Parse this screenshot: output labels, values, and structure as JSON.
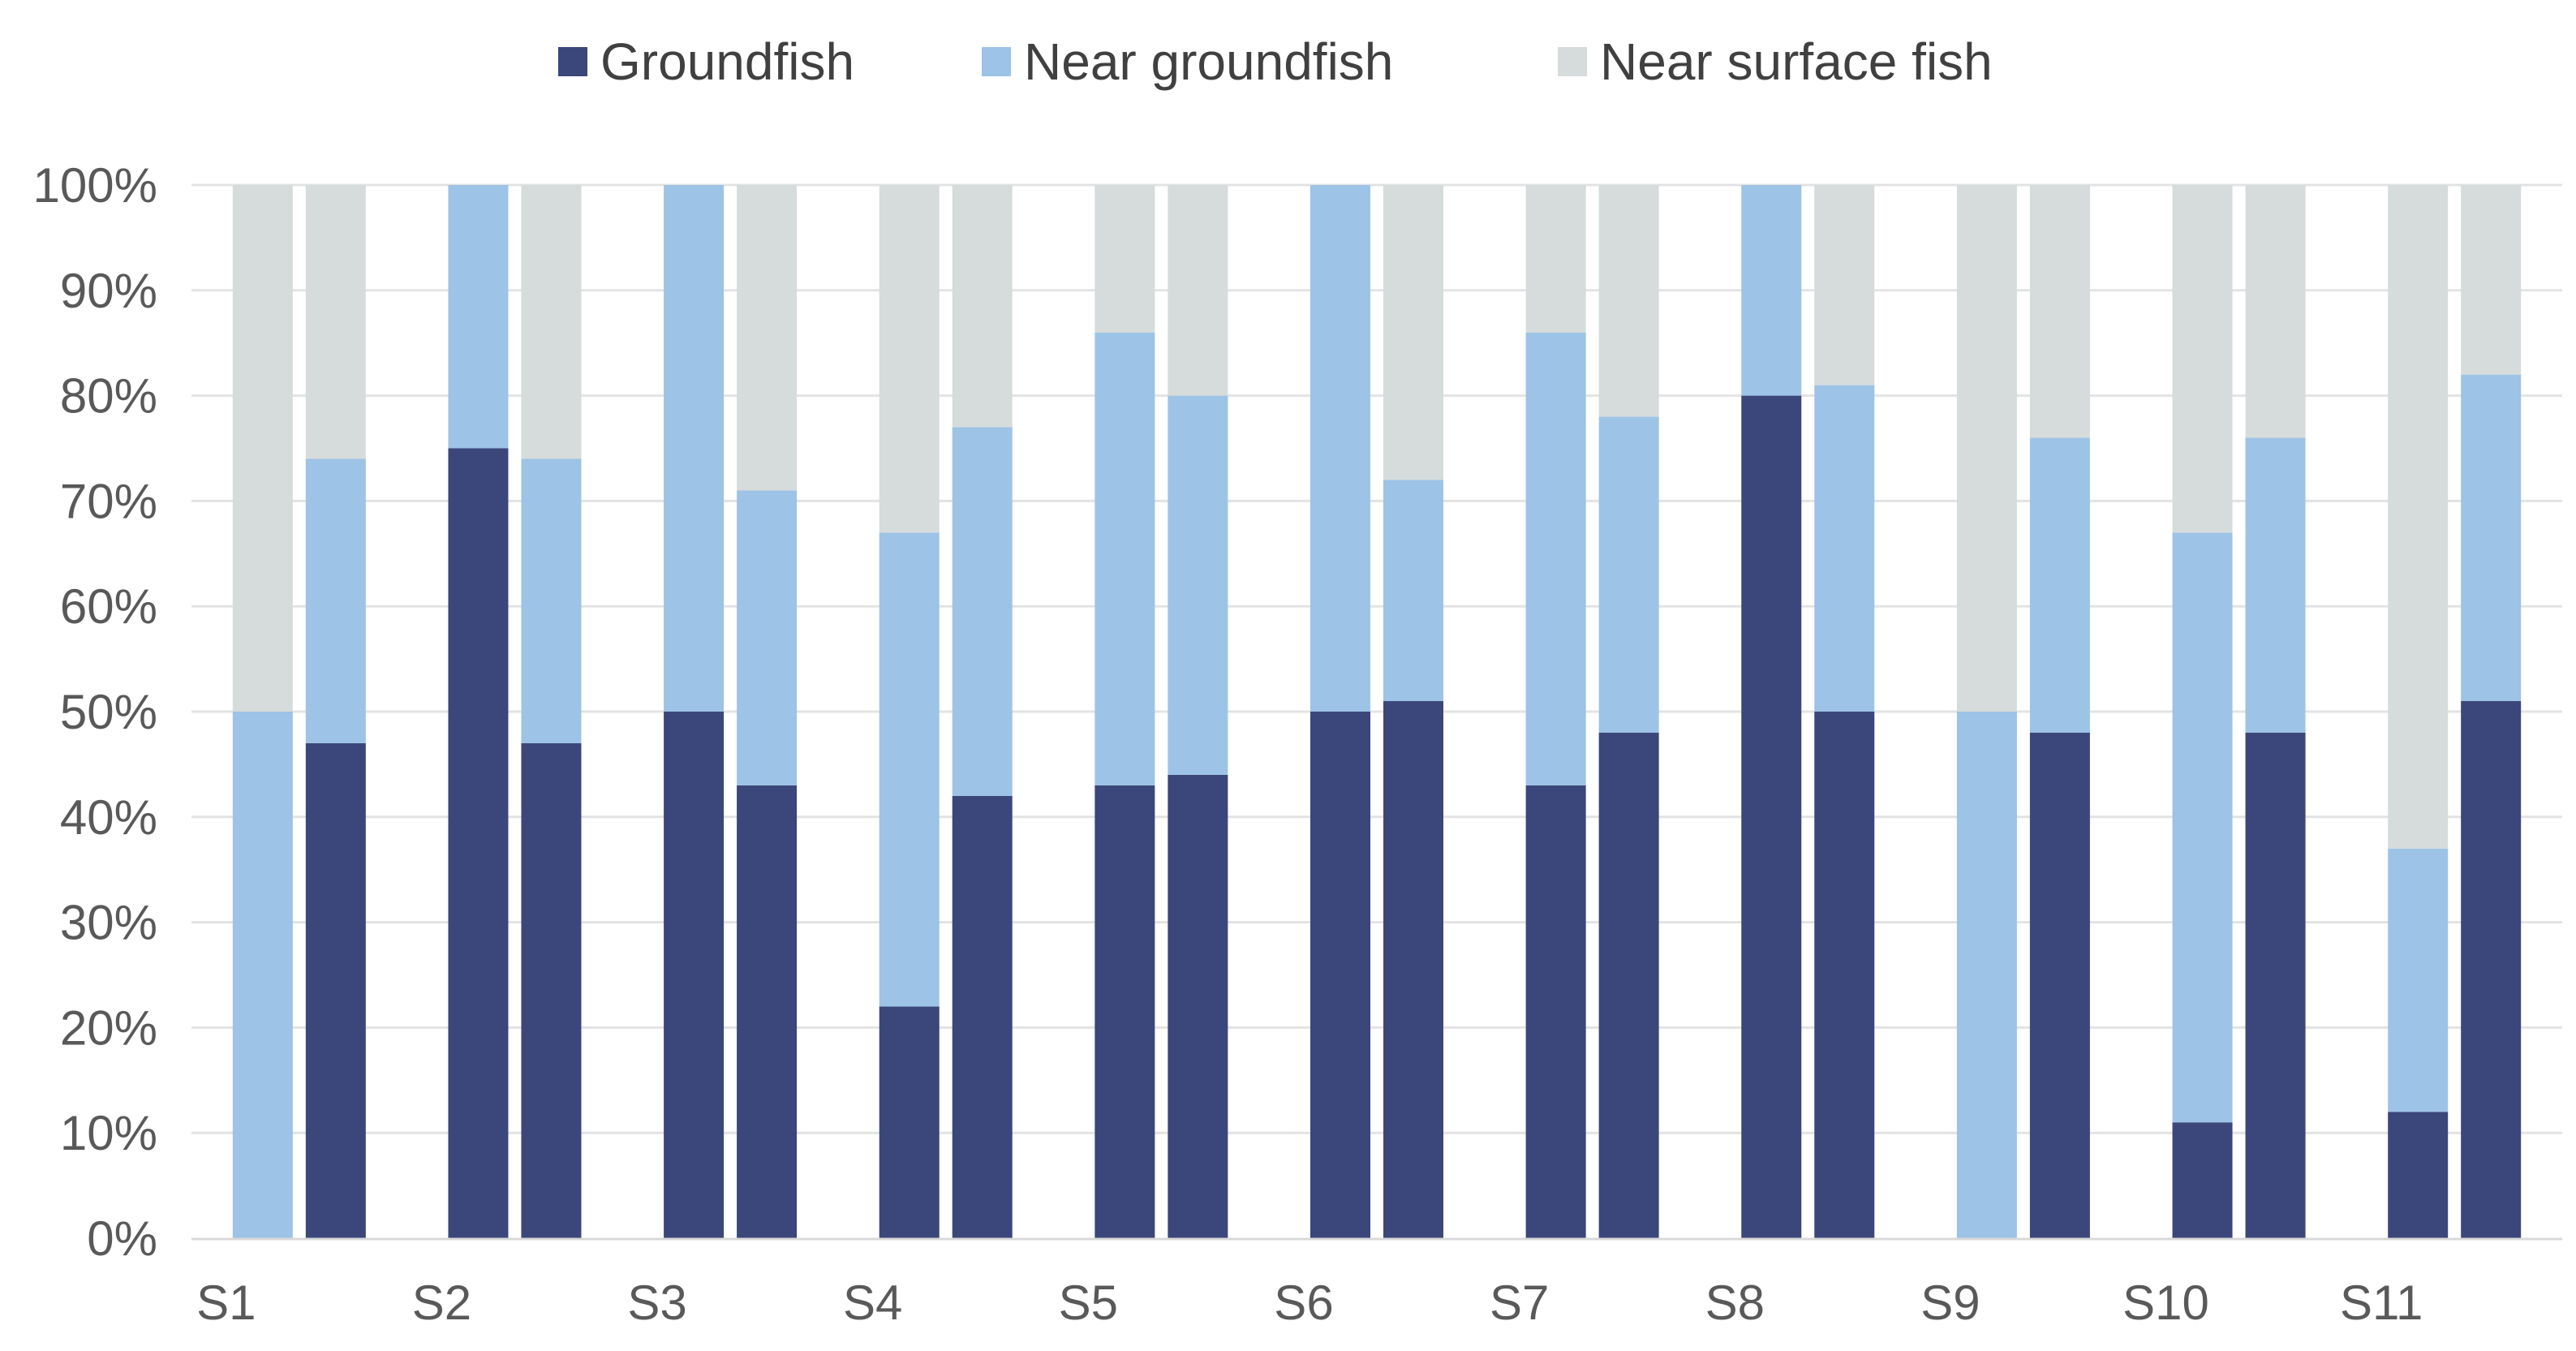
{
  "chart_data": {
    "type": "bar",
    "stacked": true,
    "percent_scale": true,
    "categories": [
      "S1",
      "S2",
      "S3",
      "S4",
      "S5",
      "S6",
      "S7",
      "S8",
      "S9",
      "S10",
      "S11"
    ],
    "bars_per_category": 2,
    "series": [
      {
        "name": "Groundfish",
        "color": "#3b477a",
        "values": [
          [
            0,
            47
          ],
          [
            75,
            47
          ],
          [
            50,
            43
          ],
          [
            22,
            42
          ],
          [
            43,
            44
          ],
          [
            50,
            51
          ],
          [
            43,
            48
          ],
          [
            80,
            50
          ],
          [
            0,
            48
          ],
          [
            11,
            48
          ],
          [
            12,
            51
          ]
        ]
      },
      {
        "name": "Near groundfish",
        "color": "#9dc3e6",
        "values": [
          [
            50,
            27
          ],
          [
            25,
            27
          ],
          [
            50,
            28
          ],
          [
            45,
            35
          ],
          [
            43,
            36
          ],
          [
            50,
            21
          ],
          [
            43,
            30
          ],
          [
            20,
            31
          ],
          [
            50,
            28
          ],
          [
            56,
            28
          ],
          [
            25,
            31
          ]
        ]
      },
      {
        "name": "Near surface fish",
        "color": "#d6dcdb",
        "values": [
          [
            50,
            26
          ],
          [
            0,
            26
          ],
          [
            0,
            29
          ],
          [
            33,
            23
          ],
          [
            14,
            20
          ],
          [
            0,
            28
          ],
          [
            14,
            22
          ],
          [
            0,
            19
          ],
          [
            50,
            24
          ],
          [
            33,
            24
          ],
          [
            63,
            18
          ]
        ]
      }
    ],
    "ylim": [
      0,
      100
    ],
    "y_ticks": [
      "0%",
      "10%",
      "20%",
      "30%",
      "40%",
      "50%",
      "60%",
      "70%",
      "80%",
      "90%",
      "100%"
    ],
    "grid": true,
    "legend_position": "top"
  }
}
